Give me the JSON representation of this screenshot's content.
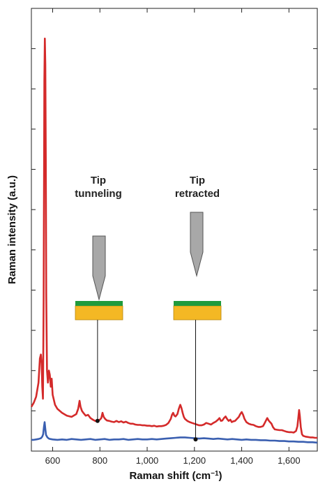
{
  "chart_data": {
    "type": "line",
    "xlabel": "Raman shift (cm",
    "xlabel_superscript": "−1",
    "xlabel_close": ")",
    "ylabel": "Raman intensity (a.u.)",
    "xlim": [
      510,
      1720
    ],
    "ylim": [
      0,
      11
    ],
    "x_ticks": [
      {
        "value": 600,
        "label": "600"
      },
      {
        "value": 800,
        "label": "800"
      },
      {
        "value": 1000,
        "label": "1,000"
      },
      {
        "value": 1200,
        "label": "1,200"
      },
      {
        "value": 1400,
        "label": "1,400"
      },
      {
        "value": 1600,
        "label": "1,600"
      }
    ],
    "y_tick_values": [
      0,
      1,
      2,
      3,
      4,
      5,
      6,
      7,
      8,
      9,
      10,
      11
    ],
    "series": [
      {
        "color": "#d42a2a",
        "points": [
          [
            510,
            1.1
          ],
          [
            520,
            1.2
          ],
          [
            530,
            1.35
          ],
          [
            540,
            1.7
          ],
          [
            546,
            2.3
          ],
          [
            550,
            2.4
          ],
          [
            553,
            2.2
          ],
          [
            556,
            1.6
          ],
          [
            559,
            1.3
          ],
          [
            562,
            3.8
          ],
          [
            565,
            9.2
          ],
          [
            567,
            10.25
          ],
          [
            569,
            9.6
          ],
          [
            571,
            7.2
          ],
          [
            573,
            3.9
          ],
          [
            576,
            2.0
          ],
          [
            580,
            1.7
          ],
          [
            584,
            2.0
          ],
          [
            588,
            1.9
          ],
          [
            592,
            1.6
          ],
          [
            596,
            1.8
          ],
          [
            600,
            1.4
          ],
          [
            610,
            1.15
          ],
          [
            620,
            1.05
          ],
          [
            640,
            0.95
          ],
          [
            660,
            0.88
          ],
          [
            680,
            0.85
          ],
          [
            700,
            0.92
          ],
          [
            708,
            1.05
          ],
          [
            714,
            1.25
          ],
          [
            718,
            1.1
          ],
          [
            724,
            1.0
          ],
          [
            730,
            0.95
          ],
          [
            740,
            0.88
          ],
          [
            750,
            0.9
          ],
          [
            760,
            0.82
          ],
          [
            770,
            0.78
          ],
          [
            780,
            0.75
          ],
          [
            790,
            0.75
          ],
          [
            800,
            0.78
          ],
          [
            806,
            0.82
          ],
          [
            811,
            0.95
          ],
          [
            816,
            0.85
          ],
          [
            822,
            0.8
          ],
          [
            830,
            0.76
          ],
          [
            840,
            0.75
          ],
          [
            850,
            0.73
          ],
          [
            860,
            0.72
          ],
          [
            870,
            0.75
          ],
          [
            880,
            0.72
          ],
          [
            890,
            0.74
          ],
          [
            900,
            0.71
          ],
          [
            910,
            0.73
          ],
          [
            920,
            0.7
          ],
          [
            930,
            0.68
          ],
          [
            940,
            0.68
          ],
          [
            950,
            0.66
          ],
          [
            960,
            0.65
          ],
          [
            970,
            0.65
          ],
          [
            980,
            0.64
          ],
          [
            990,
            0.64
          ],
          [
            1000,
            0.63
          ],
          [
            1010,
            0.63
          ],
          [
            1020,
            0.62
          ],
          [
            1030,
            0.63
          ],
          [
            1040,
            0.61
          ],
          [
            1050,
            0.62
          ],
          [
            1060,
            0.62
          ],
          [
            1070,
            0.63
          ],
          [
            1080,
            0.65
          ],
          [
            1090,
            0.7
          ],
          [
            1100,
            0.8
          ],
          [
            1105,
            0.9
          ],
          [
            1110,
            0.95
          ],
          [
            1115,
            0.88
          ],
          [
            1120,
            0.86
          ],
          [
            1128,
            0.92
          ],
          [
            1134,
            1.05
          ],
          [
            1140,
            1.15
          ],
          [
            1145,
            1.07
          ],
          [
            1150,
            0.95
          ],
          [
            1155,
            0.85
          ],
          [
            1160,
            0.8
          ],
          [
            1170,
            0.75
          ],
          [
            1180,
            0.72
          ],
          [
            1190,
            0.7
          ],
          [
            1200,
            0.68
          ],
          [
            1210,
            0.66
          ],
          [
            1220,
            0.64
          ],
          [
            1230,
            0.64
          ],
          [
            1240,
            0.66
          ],
          [
            1250,
            0.7
          ],
          [
            1260,
            0.68
          ],
          [
            1270,
            0.66
          ],
          [
            1280,
            0.7
          ],
          [
            1290,
            0.73
          ],
          [
            1300,
            0.78
          ],
          [
            1306,
            0.82
          ],
          [
            1312,
            0.75
          ],
          [
            1318,
            0.76
          ],
          [
            1325,
            0.82
          ],
          [
            1332,
            0.86
          ],
          [
            1338,
            0.8
          ],
          [
            1345,
            0.75
          ],
          [
            1352,
            0.78
          ],
          [
            1358,
            0.72
          ],
          [
            1365,
            0.74
          ],
          [
            1372,
            0.75
          ],
          [
            1380,
            0.8
          ],
          [
            1388,
            0.85
          ],
          [
            1394,
            0.92
          ],
          [
            1400,
            0.97
          ],
          [
            1406,
            0.9
          ],
          [
            1412,
            0.8
          ],
          [
            1420,
            0.72
          ],
          [
            1430,
            0.68
          ],
          [
            1440,
            0.66
          ],
          [
            1450,
            0.65
          ],
          [
            1460,
            0.62
          ],
          [
            1470,
            0.6
          ],
          [
            1480,
            0.6
          ],
          [
            1490,
            0.62
          ],
          [
            1496,
            0.68
          ],
          [
            1502,
            0.75
          ],
          [
            1508,
            0.82
          ],
          [
            1514,
            0.76
          ],
          [
            1520,
            0.72
          ],
          [
            1526,
            0.68
          ],
          [
            1532,
            0.6
          ],
          [
            1540,
            0.54
          ],
          [
            1550,
            0.53
          ],
          [
            1560,
            0.52
          ],
          [
            1570,
            0.52
          ],
          [
            1580,
            0.5
          ],
          [
            1590,
            0.48
          ],
          [
            1600,
            0.47
          ],
          [
            1610,
            0.47
          ],
          [
            1620,
            0.46
          ],
          [
            1630,
            0.5
          ],
          [
            1636,
            0.62
          ],
          [
            1640,
            0.85
          ],
          [
            1643,
            1.02
          ],
          [
            1646,
            0.88
          ],
          [
            1650,
            0.6
          ],
          [
            1655,
            0.42
          ],
          [
            1660,
            0.38
          ],
          [
            1670,
            0.36
          ],
          [
            1680,
            0.35
          ],
          [
            1690,
            0.34
          ],
          [
            1700,
            0.34
          ],
          [
            1710,
            0.33
          ],
          [
            1720,
            0.33
          ]
        ]
      },
      {
        "color": "#3a5fb0",
        "points": [
          [
            510,
            0.28
          ],
          [
            520,
            0.28
          ],
          [
            530,
            0.29
          ],
          [
            540,
            0.3
          ],
          [
            550,
            0.32
          ],
          [
            556,
            0.36
          ],
          [
            560,
            0.42
          ],
          [
            563,
            0.6
          ],
          [
            566,
            0.72
          ],
          [
            569,
            0.55
          ],
          [
            572,
            0.4
          ],
          [
            578,
            0.34
          ],
          [
            584,
            0.31
          ],
          [
            590,
            0.3
          ],
          [
            600,
            0.29
          ],
          [
            620,
            0.28
          ],
          [
            640,
            0.29
          ],
          [
            660,
            0.28
          ],
          [
            680,
            0.3
          ],
          [
            700,
            0.29
          ],
          [
            720,
            0.28
          ],
          [
            740,
            0.29
          ],
          [
            760,
            0.3
          ],
          [
            780,
            0.28
          ],
          [
            800,
            0.29
          ],
          [
            820,
            0.3
          ],
          [
            840,
            0.28
          ],
          [
            860,
            0.29
          ],
          [
            880,
            0.29
          ],
          [
            900,
            0.3
          ],
          [
            920,
            0.28
          ],
          [
            940,
            0.29
          ],
          [
            960,
            0.3
          ],
          [
            980,
            0.29
          ],
          [
            1000,
            0.29
          ],
          [
            1020,
            0.3
          ],
          [
            1040,
            0.29
          ],
          [
            1060,
            0.3
          ],
          [
            1080,
            0.31
          ],
          [
            1100,
            0.32
          ],
          [
            1120,
            0.33
          ],
          [
            1140,
            0.34
          ],
          [
            1160,
            0.34
          ],
          [
            1180,
            0.33
          ],
          [
            1200,
            0.32
          ],
          [
            1220,
            0.31
          ],
          [
            1240,
            0.32
          ],
          [
            1260,
            0.31
          ],
          [
            1280,
            0.3
          ],
          [
            1300,
            0.31
          ],
          [
            1320,
            0.3
          ],
          [
            1340,
            0.29
          ],
          [
            1360,
            0.3
          ],
          [
            1380,
            0.29
          ],
          [
            1400,
            0.28
          ],
          [
            1420,
            0.29
          ],
          [
            1440,
            0.28
          ],
          [
            1460,
            0.28
          ],
          [
            1480,
            0.27
          ],
          [
            1500,
            0.27
          ],
          [
            1520,
            0.26
          ],
          [
            1540,
            0.26
          ],
          [
            1560,
            0.25
          ],
          [
            1580,
            0.25
          ],
          [
            1600,
            0.24
          ],
          [
            1620,
            0.24
          ],
          [
            1640,
            0.23
          ],
          [
            1660,
            0.23
          ],
          [
            1680,
            0.22
          ],
          [
            1700,
            0.22
          ],
          [
            1720,
            0.21
          ]
        ]
      }
    ],
    "annotations": [
      {
        "line1": "Tip",
        "line2": "tunneling",
        "x_value": 790,
        "marker_y": 0.75
      },
      {
        "line1": "Tip",
        "line2": "retracted",
        "x_value": 1205,
        "marker_y": 0.29
      }
    ]
  },
  "colors": {
    "red_series": "#d42a2a",
    "blue_series": "#3a5fb0",
    "substrate_top": "#1f9a3c",
    "substrate_bottom": "#f4b824",
    "tip_fill": "#a8a8a8",
    "tip_stroke": "#555555"
  }
}
